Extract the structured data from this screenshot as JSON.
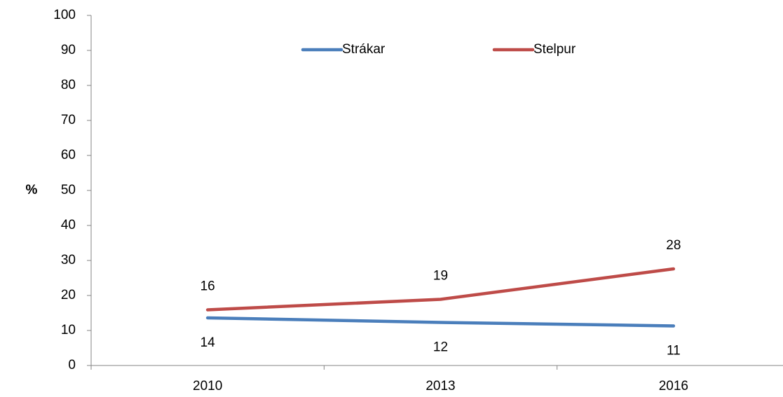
{
  "chart_data": {
    "type": "line",
    "categories": [
      "2010",
      "2013",
      "2016"
    ],
    "series": [
      {
        "name": "Strákar",
        "color": "#4a7ebb",
        "values": [
          13.6,
          12.3,
          11.3
        ],
        "value_labels": [
          "14",
          "12",
          "11"
        ]
      },
      {
        "name": "Stelpur",
        "color": "#be4b48",
        "values": [
          15.9,
          18.9,
          27.6
        ],
        "value_labels": [
          "16",
          "19",
          "28"
        ]
      }
    ],
    "y_label": "%",
    "ylim": [
      0,
      100
    ],
    "yticks": [
      0,
      10,
      20,
      30,
      40,
      50,
      60,
      70,
      80,
      90,
      100
    ],
    "grid": false,
    "legend": "top"
  }
}
